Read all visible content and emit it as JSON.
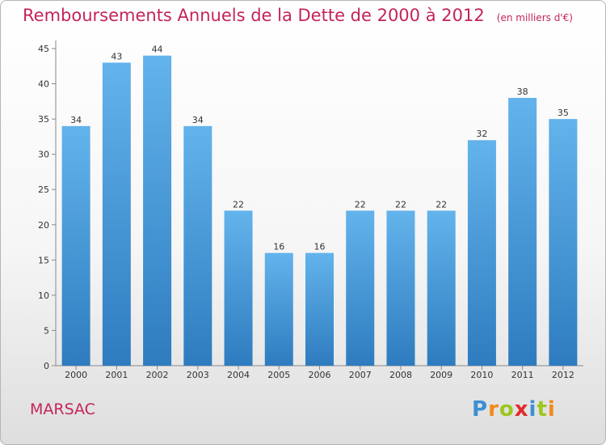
{
  "title": "Remboursements Annuels de la Dette de 2000 à 2012",
  "title_unit": "(en milliers d'€)",
  "commune": "MARSAC",
  "brand": "Proxiti",
  "colors": {
    "title": "#c4245b",
    "bar_top": "#63b3ec",
    "bar_bottom": "#2e7cbf",
    "brand_letters": [
      "#3c8fd1",
      "#f08a1c",
      "#9cc71e",
      "#e22b2b",
      "#3c8fd1",
      "#9cc71e",
      "#f08a1c"
    ]
  },
  "chart_data": {
    "type": "bar",
    "categories": [
      "2000",
      "2001",
      "2002",
      "2003",
      "2004",
      "2005",
      "2006",
      "2007",
      "2008",
      "2009",
      "2010",
      "2011",
      "2012"
    ],
    "values": [
      34,
      43,
      44,
      34,
      22,
      16,
      16,
      22,
      22,
      22,
      32,
      38,
      35
    ],
    "ylim": [
      0,
      45
    ],
    "yticks": [
      0,
      5,
      10,
      15,
      20,
      25,
      30,
      35,
      40,
      45
    ],
    "grid": false,
    "data_labels": true
  }
}
